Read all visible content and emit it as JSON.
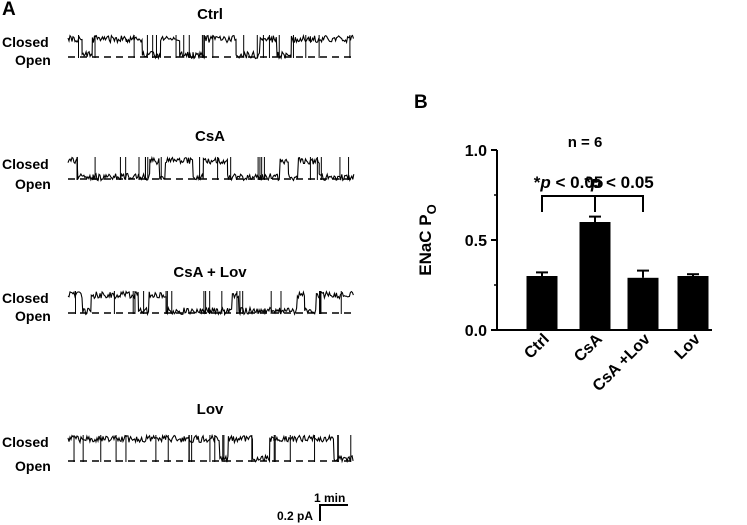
{
  "panel_a": {
    "label": "A",
    "state_closed": "Closed",
    "state_open": "Open",
    "traces": [
      {
        "title": "Ctrl",
        "open_fraction": 0.3
      },
      {
        "title": "CsA",
        "open_fraction": 0.6
      },
      {
        "title": "CsA + Lov",
        "open_fraction": 0.29
      },
      {
        "title": "Lov",
        "open_fraction": 0.3
      }
    ],
    "scale_bar": {
      "time": "1 min",
      "current": "0.2 pA"
    }
  },
  "panel_b": {
    "label": "B",
    "n_label": "n = 6",
    "stats": [
      {
        "star": "*",
        "p": "p",
        "rest": " < 0.05"
      },
      {
        "star": "*",
        "p": "p",
        "rest": " < 0.05"
      }
    ]
  },
  "chart_data": {
    "type": "bar",
    "categories": [
      "Ctrl",
      "CsA",
      "CsA +Lov",
      "Lov"
    ],
    "values": [
      0.3,
      0.6,
      0.29,
      0.3
    ],
    "errors": [
      0.02,
      0.03,
      0.04,
      0.01
    ],
    "ylabel": "ENaC P",
    "ylabel_sub": "O",
    "ylim": [
      0.0,
      1.0
    ],
    "yticks": [
      "0.0",
      "0.5",
      "1.0"
    ],
    "bar_color": "#000000",
    "comparisons": [
      {
        "from": "Ctrl",
        "to": "CsA",
        "label": "*p < 0.05"
      },
      {
        "from": "CsA",
        "to": "CsA +Lov",
        "label": "*p < 0.05"
      }
    ]
  }
}
